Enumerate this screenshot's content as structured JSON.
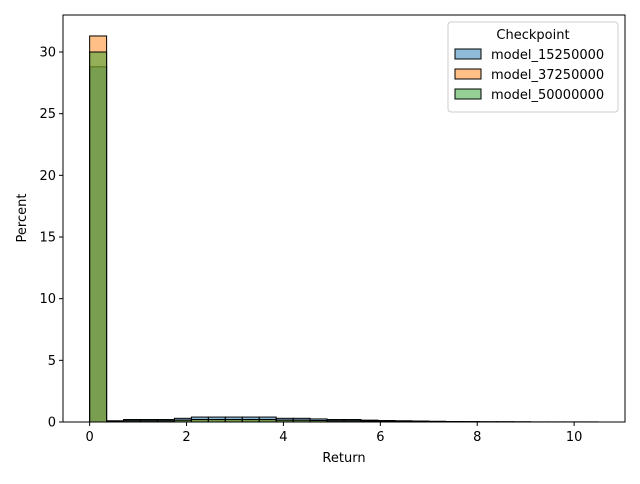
{
  "chart_data": {
    "type": "bar",
    "subtype": "histogram",
    "xlabel": "Return",
    "ylabel": "Percent",
    "xlim": [
      -0.55,
      11.05
    ],
    "ylim": [
      0,
      33
    ],
    "xticks": [
      0,
      2,
      4,
      6,
      8,
      10
    ],
    "yticks": [
      0,
      5,
      10,
      15,
      20,
      25,
      30
    ],
    "grid": false,
    "legend": {
      "title": "Checkpoint",
      "placement": "top-right"
    },
    "bin_edges": [
      0,
      0.35,
      0.7,
      1.05,
      1.4,
      1.75,
      2.1,
      2.45,
      2.8,
      3.15,
      3.5,
      3.85,
      4.2,
      4.55,
      4.9,
      5.25,
      5.6,
      5.95,
      6.3,
      6.65,
      7.0,
      7.35,
      7.7,
      8.05,
      8.4,
      8.75,
      9.1,
      9.45,
      9.8,
      10.15,
      10.5
    ],
    "series": [
      {
        "name": "model_15250000",
        "color": "#1f77b4",
        "values": [
          28.8,
          0.1,
          0.2,
          0.2,
          0.2,
          0.3,
          0.4,
          0.4,
          0.4,
          0.4,
          0.4,
          0.3,
          0.3,
          0.25,
          0.2,
          0.2,
          0.15,
          0.12,
          0.1,
          0.08,
          0.06,
          0.04,
          0.03,
          0.02,
          0.02,
          0.01,
          0.01,
          0.01,
          0.01,
          0.01
        ]
      },
      {
        "name": "model_37250000",
        "color": "#ff7f0e",
        "values": [
          31.3,
          0.05,
          0.1,
          0.1,
          0.1,
          0.15,
          0.2,
          0.2,
          0.2,
          0.2,
          0.2,
          0.15,
          0.15,
          0.12,
          0.1,
          0.1,
          0.08,
          0.06,
          0.05,
          0.04,
          0.03,
          0.02,
          0.02,
          0.01,
          0.01,
          0.01,
          0.0,
          0.0,
          0.0,
          0.0
        ]
      },
      {
        "name": "model_50000000",
        "color": "#2ca02c",
        "values": [
          30.0,
          0.05,
          0.1,
          0.1,
          0.1,
          0.15,
          0.2,
          0.2,
          0.2,
          0.2,
          0.2,
          0.15,
          0.15,
          0.12,
          0.1,
          0.1,
          0.08,
          0.06,
          0.05,
          0.04,
          0.03,
          0.02,
          0.02,
          0.01,
          0.01,
          0.01,
          0.0,
          0.0,
          0.0,
          0.0
        ]
      }
    ]
  }
}
